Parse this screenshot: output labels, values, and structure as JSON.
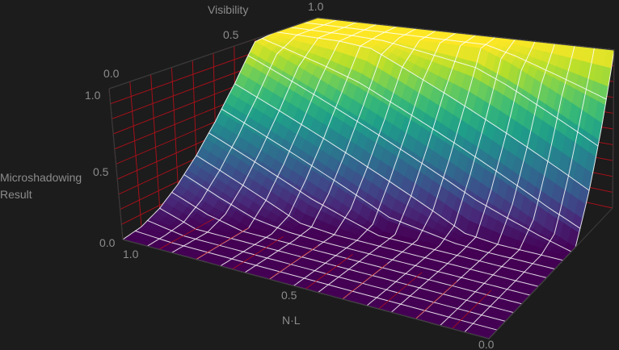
{
  "chart_data": {
    "type": "surface",
    "title": "",
    "x_axis": {
      "label": "N·L",
      "range": [
        0,
        1
      ],
      "ticks": [
        "1.0",
        "0.5",
        "0.0"
      ]
    },
    "y_axis": {
      "label": "Visibility",
      "range": [
        0,
        1
      ],
      "ticks": [
        "0.0",
        "0.5",
        "1.0"
      ]
    },
    "z_axis": {
      "label_line1": "Microshadowing",
      "label_line2": "Result",
      "range": [
        0,
        1
      ],
      "ticks": [
        "0.0",
        "0.5",
        "1.0"
      ]
    },
    "grid": true,
    "colormap": "viridis",
    "colors": {
      "background": "#1c1c1c",
      "mesh": "#ffffff",
      "gridlines": "#b0101a",
      "text": "#8c8c8c"
    },
    "sample_nl": [
      0,
      0.1,
      0.2,
      0.3,
      0.4,
      0.5,
      0.6,
      0.7,
      0.8,
      0.9,
      1.0
    ],
    "sample_visibility": [
      0,
      0.1,
      0.2,
      0.3,
      0.4,
      0.5,
      0.6,
      0.7,
      0.8,
      0.9,
      1.0
    ],
    "z_values": [
      [
        0,
        0,
        0,
        0,
        0,
        0,
        0,
        0,
        0,
        0,
        0
      ],
      [
        0,
        0,
        0,
        0,
        0,
        0,
        0,
        0,
        0,
        0,
        0.02
      ],
      [
        0,
        0,
        0,
        0,
        0,
        0,
        0,
        0,
        0,
        0,
        0.08
      ],
      [
        0,
        0,
        0,
        0,
        0,
        0,
        0,
        0,
        0,
        0.08,
        0.18
      ],
      [
        0,
        0,
        0,
        0,
        0,
        0,
        0,
        0.02,
        0.12,
        0.22,
        0.32
      ],
      [
        0,
        0,
        0,
        0,
        0,
        0,
        0.1,
        0.2,
        0.3,
        0.4,
        0.5
      ],
      [
        0,
        0,
        0,
        0.02,
        0.12,
        0.22,
        0.32,
        0.42,
        0.52,
        0.62,
        0.72
      ],
      [
        0,
        0.08,
        0.18,
        0.28,
        0.38,
        0.48,
        0.58,
        0.68,
        0.78,
        0.88,
        0.98
      ],
      [
        0.28,
        0.38,
        0.48,
        0.58,
        0.68,
        0.78,
        0.88,
        0.98,
        1,
        1,
        1
      ],
      [
        0.62,
        0.72,
        0.82,
        0.92,
        1,
        1,
        1,
        1,
        1,
        1,
        1
      ],
      [
        1,
        1,
        1,
        1,
        1,
        1,
        1,
        1,
        1,
        1,
        1
      ]
    ]
  }
}
